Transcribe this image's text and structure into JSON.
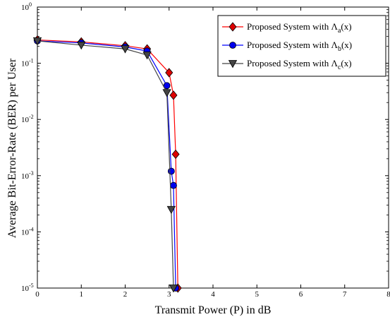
{
  "chart_data": {
    "type": "line",
    "xlabel": "Transmit Power (P) in dB",
    "ylabel": "Average Bit-Error-Rate (BER) per User",
    "xlim": [
      0,
      8
    ],
    "ylim": [
      1e-05,
      1
    ],
    "yscale": "log",
    "grid": false,
    "legend_position": "top-right",
    "x_ticks": [
      "0",
      "1",
      "2",
      "3",
      "4",
      "5",
      "6",
      "7",
      "8"
    ],
    "y_ticks": [
      {
        "base": "10",
        "exp": "0"
      },
      {
        "base": "10",
        "exp": "-1"
      },
      {
        "base": "10",
        "exp": "-2"
      },
      {
        "base": "10",
        "exp": "-3"
      },
      {
        "base": "10",
        "exp": "-4"
      },
      {
        "base": "10",
        "exp": "-5"
      }
    ],
    "series": [
      {
        "legend_prefix": "Proposed System with Λ",
        "legend_sub": "a",
        "legend_suffix": "(x)",
        "color": "#ff0000",
        "marker": "diamond",
        "marker_color": "#dd0000",
        "x": [
          0,
          1,
          2,
          2.5,
          3,
          3.1,
          3.15,
          3.2
        ],
        "y": [
          0.26,
          0.24,
          0.205,
          0.18,
          0.068,
          0.027,
          0.0024,
          1e-05
        ]
      },
      {
        "legend_prefix": "Proposed System with Λ",
        "legend_sub": "b",
        "legend_suffix": "(x)",
        "color": "#0000ff",
        "marker": "circle",
        "marker_color": "#0000ee",
        "x": [
          0,
          1,
          2,
          2.5,
          2.95,
          3.05,
          3.1,
          3.15
        ],
        "y": [
          0.25,
          0.23,
          0.195,
          0.165,
          0.04,
          0.0012,
          0.00067,
          1e-05
        ]
      },
      {
        "legend_prefix": "Proposed System with Λ",
        "legend_sub": "c",
        "legend_suffix": "(x)",
        "color": "#444444",
        "marker": "triangle-down",
        "marker_color": "#444444",
        "x": [
          0,
          1,
          2,
          2.5,
          2.95,
          3.05,
          3.1
        ],
        "y": [
          0.25,
          0.21,
          0.18,
          0.14,
          0.03,
          0.00025,
          1e-05
        ]
      }
    ]
  }
}
